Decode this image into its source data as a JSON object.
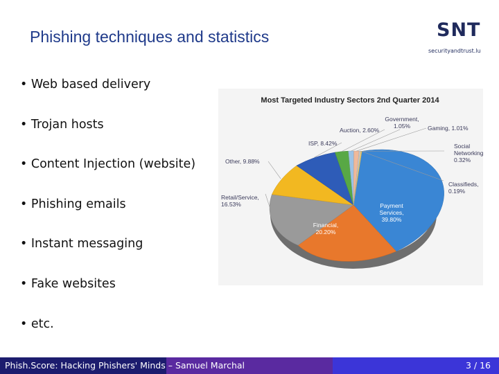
{
  "slide": {
    "title": "Phishing techniques and statistics",
    "bullets": [
      "• Web based delivery",
      "• Trojan hosts",
      "• Content Injection (website)",
      "• Phishing emails",
      "• Instant messaging",
      "• Fake websites",
      "• etc."
    ]
  },
  "logo": {
    "letters": "SNT",
    "tagline": "securityandtrust.lu",
    "color": "#1f2a5c"
  },
  "footer": {
    "text": "Phish.Score: Hacking Phishers' Minds – Samuel Marchal",
    "page": "3 / 16",
    "colors": [
      "#1c1c6e",
      "#5a2aa0",
      "#3b35d8"
    ]
  },
  "chart_data": {
    "type": "pie",
    "title": "Most Targeted Industry Sectors 2nd Quarter 2014",
    "slices": [
      {
        "name": "Payment Services",
        "value": 39.8,
        "label": [
          "Payment",
          "Services,",
          "39.80%"
        ],
        "color": "#3a86d4"
      },
      {
        "name": "Financial",
        "value": 20.2,
        "label": [
          "Financial,",
          "20.20%"
        ],
        "color": "#e8782c"
      },
      {
        "name": "Retail/Service",
        "value": 16.53,
        "label": [
          "Retail/Service,",
          "16.53%"
        ],
        "color": "#9a9a9a"
      },
      {
        "name": "Other",
        "value": 9.88,
        "label": [
          "Other, 9.88%"
        ],
        "color": "#f2b821"
      },
      {
        "name": "ISP",
        "value": 8.42,
        "label": [
          "ISP, 8.42%"
        ],
        "color": "#2e5cb8"
      },
      {
        "name": "Auction",
        "value": 2.6,
        "label": [
          "Auction, 2.60%"
        ],
        "color": "#58a845"
      },
      {
        "name": "Government",
        "value": 1.05,
        "label": [
          "Government,",
          "1.05%"
        ],
        "color": "#9cc3e6"
      },
      {
        "name": "Gaming",
        "value": 1.01,
        "label": [
          "Gaming, 1.01%"
        ],
        "color": "#f0b99a"
      },
      {
        "name": "Social Networking",
        "value": 0.32,
        "label": [
          "Social",
          "Networking,",
          "0.32%"
        ],
        "color": "#c8c8c8"
      },
      {
        "name": "Classifieds",
        "value": 0.19,
        "label": [
          "Classifieds,",
          "0.19%"
        ],
        "color": "#f5d06a"
      }
    ]
  }
}
